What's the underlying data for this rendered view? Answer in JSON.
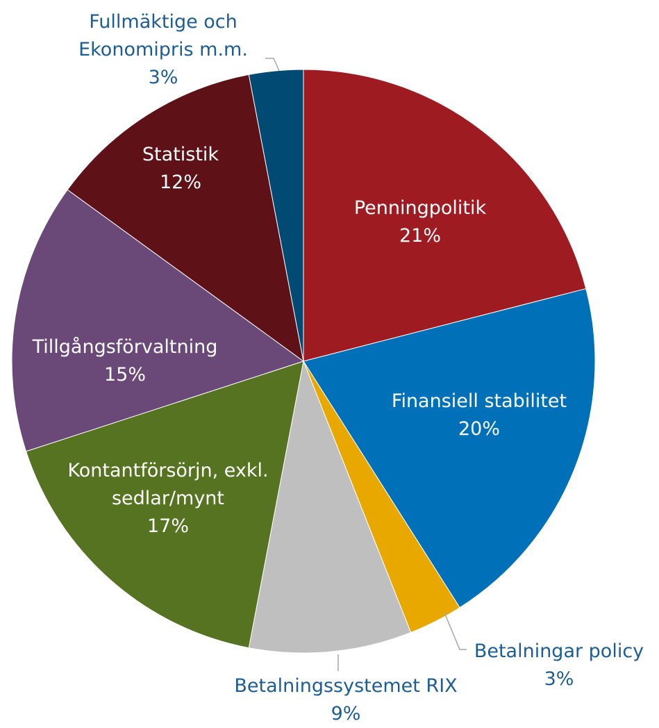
{
  "chart_data": {
    "type": "pie",
    "categories": [
      "Penningpolitik",
      "Finansiell stabilitet",
      "Betalningar policy",
      "Betalningssystemet RIX",
      "Kontantförsörjn, exkl. sedlar/mynt",
      "Tillgångsförvaltning",
      "Statistik",
      "Fullmäktige och Ekonomipris m.m."
    ],
    "values": [
      21,
      20,
      3,
      9,
      17,
      15,
      12,
      3
    ],
    "value_labels": [
      "21%",
      "20%",
      "3%",
      "9%",
      "17%",
      "15%",
      "12%",
      "3%"
    ],
    "colors": [
      "#9e1b22",
      "#0070b8",
      "#e8a800",
      "#bfbfbf",
      "#567321",
      "#6a4878",
      "#5e1117",
      "#004a73"
    ]
  }
}
